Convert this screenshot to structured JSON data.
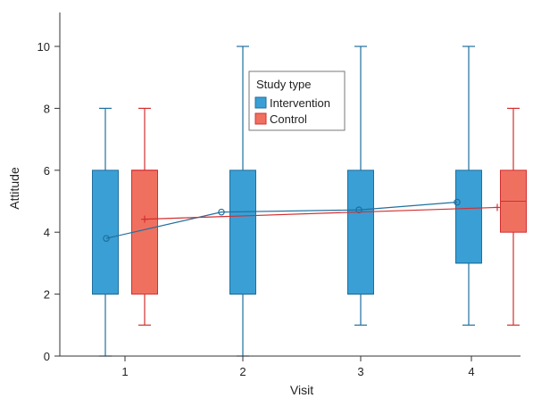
{
  "chart_data": {
    "type": "box",
    "xlabel": "Visit",
    "ylabel": "Attitude",
    "categories": [
      "1",
      "2",
      "3",
      "4"
    ],
    "ylim": [
      0,
      11
    ],
    "yticks": [
      0,
      2,
      4,
      6,
      8,
      10
    ],
    "grid": false,
    "legend": {
      "title": "Study type",
      "position": "top-center"
    },
    "series": [
      {
        "name": "Intervention",
        "color": "#3a9fd4",
        "stroke": "#1f6f9e",
        "boxes": [
          {
            "visit": "1",
            "min": 0,
            "q1": 2,
            "median": 2,
            "q3": 6,
            "max": 8
          },
          {
            "visit": "2",
            "min": 0,
            "q1": 2,
            "median": 2,
            "q3": 6,
            "max": 10
          },
          {
            "visit": "3",
            "min": 1,
            "q1": 2,
            "median": 2,
            "q3": 6,
            "max": 10
          },
          {
            "visit": "4",
            "min": 1,
            "q1": 3,
            "median": 3,
            "q3": 6,
            "max": 10
          }
        ],
        "means": [
          3.8,
          4.65,
          4.72,
          4.97
        ],
        "mean_marker": "circle"
      },
      {
        "name": "Control",
        "color": "#f07060",
        "stroke": "#d32f2f",
        "boxes": [
          {
            "visit": "1",
            "min": 1,
            "q1": 2,
            "median": 6,
            "q3": 6,
            "max": 8
          },
          {
            "visit": "4",
            "min": 1,
            "q1": 4,
            "median": 5,
            "q3": 6,
            "max": 8
          }
        ],
        "means": [
          4.42,
          null,
          null,
          4.8
        ],
        "mean_marker": "plus"
      }
    ]
  }
}
